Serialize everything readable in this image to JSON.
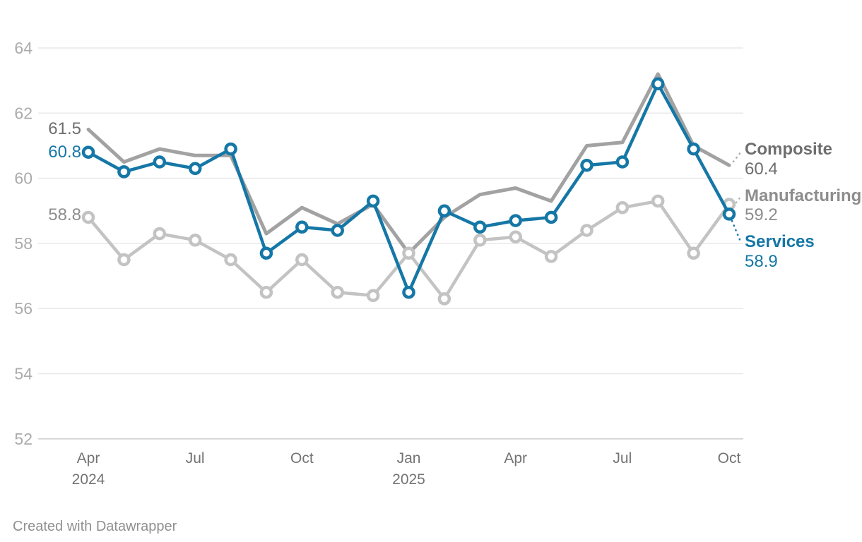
{
  "chart_data": {
    "type": "line",
    "title": "",
    "xlabel": "",
    "ylabel": "",
    "ylim": [
      52,
      64
    ],
    "grid": "horizontal",
    "legend_position": "right-edge-direct-labels",
    "y_ticks": [
      64,
      62,
      60,
      58,
      56,
      54,
      52
    ],
    "x_ticks": [
      {
        "index": 0,
        "month": "Apr",
        "year": "2024"
      },
      {
        "index": 3,
        "month": "Jul",
        "year": ""
      },
      {
        "index": 6,
        "month": "Oct",
        "year": ""
      },
      {
        "index": 9,
        "month": "Jan",
        "year": "2025"
      },
      {
        "index": 12,
        "month": "Apr",
        "year": ""
      },
      {
        "index": 15,
        "month": "Jul",
        "year": ""
      },
      {
        "index": 18,
        "month": "Oct",
        "year": ""
      }
    ],
    "categories": [
      "Apr 2024",
      "May 2024",
      "Jun 2024",
      "Jul 2024",
      "Aug 2024",
      "Sep 2024",
      "Oct 2024",
      "Nov 2024",
      "Dec 2024",
      "Jan 2025",
      "Feb 2025",
      "Mar 2025",
      "Apr 2025",
      "May 2025",
      "Jun 2025",
      "Jul 2025",
      "Aug 2025",
      "Sep 2025",
      "Oct 2025"
    ],
    "series": [
      {
        "name": "Composite",
        "color": "#a2a2a2",
        "label_color": "#6e6e6e",
        "markers": false,
        "start_label": "61.5",
        "end_label": "60.4",
        "values": [
          61.5,
          60.5,
          60.9,
          60.7,
          60.7,
          58.3,
          59.1,
          58.6,
          59.2,
          57.7,
          58.8,
          59.5,
          59.7,
          59.3,
          61.0,
          61.1,
          63.2,
          61.0,
          60.4
        ]
      },
      {
        "name": "Manufacturing",
        "color": "#c3c3c3",
        "label_color": "#8d8d8d",
        "markers": true,
        "start_label": "58.8",
        "end_label": "59.2",
        "values": [
          58.8,
          57.5,
          58.3,
          58.1,
          57.5,
          56.5,
          57.5,
          56.5,
          56.4,
          57.7,
          56.3,
          58.1,
          58.2,
          57.6,
          58.4,
          59.1,
          59.3,
          57.7,
          59.2
        ]
      },
      {
        "name": "Services",
        "color": "#1577a6",
        "label_color": "#1577a6",
        "markers": true,
        "start_label": "60.8",
        "end_label": "58.9",
        "values": [
          60.8,
          60.2,
          60.5,
          60.3,
          60.9,
          57.7,
          58.5,
          58.4,
          59.3,
          56.5,
          59.0,
          58.5,
          58.7,
          58.8,
          60.4,
          60.5,
          62.9,
          60.9,
          58.9
        ]
      }
    ]
  },
  "footer": {
    "credit": "Created with Datawrapper"
  }
}
